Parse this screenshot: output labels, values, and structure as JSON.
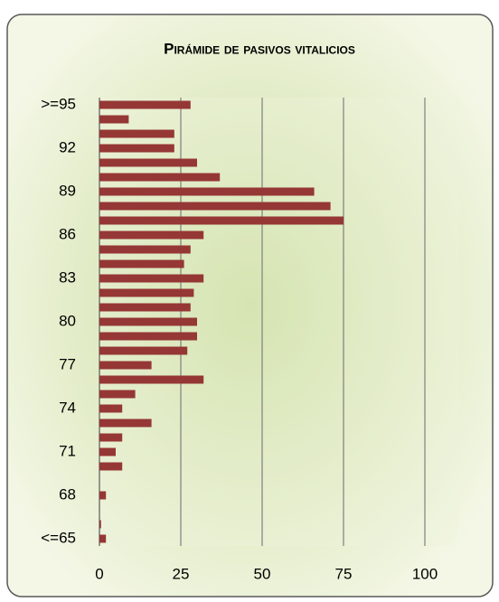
{
  "chart_data": {
    "type": "barh",
    "title": "Pirámide de pasivos vitalicios",
    "categories": [
      "<=65",
      null,
      null,
      "68",
      null,
      null,
      "71",
      null,
      null,
      "74",
      null,
      null,
      "77",
      null,
      null,
      "80",
      null,
      null,
      "83",
      null,
      null,
      "86",
      null,
      null,
      "89",
      null,
      null,
      "92",
      null,
      null,
      ">=95"
    ],
    "values": [
      2,
      0.5,
      0,
      2,
      0,
      7,
      5,
      7,
      16,
      7,
      11,
      32,
      16,
      27,
      30,
      30,
      28,
      29,
      32,
      26,
      28,
      32,
      75,
      71,
      66,
      37,
      30,
      23,
      23,
      9,
      28
    ],
    "color": "#953735",
    "xlim": [
      0,
      110
    ],
    "xticks": [
      0,
      25,
      50,
      75,
      100
    ],
    "grid": true
  }
}
